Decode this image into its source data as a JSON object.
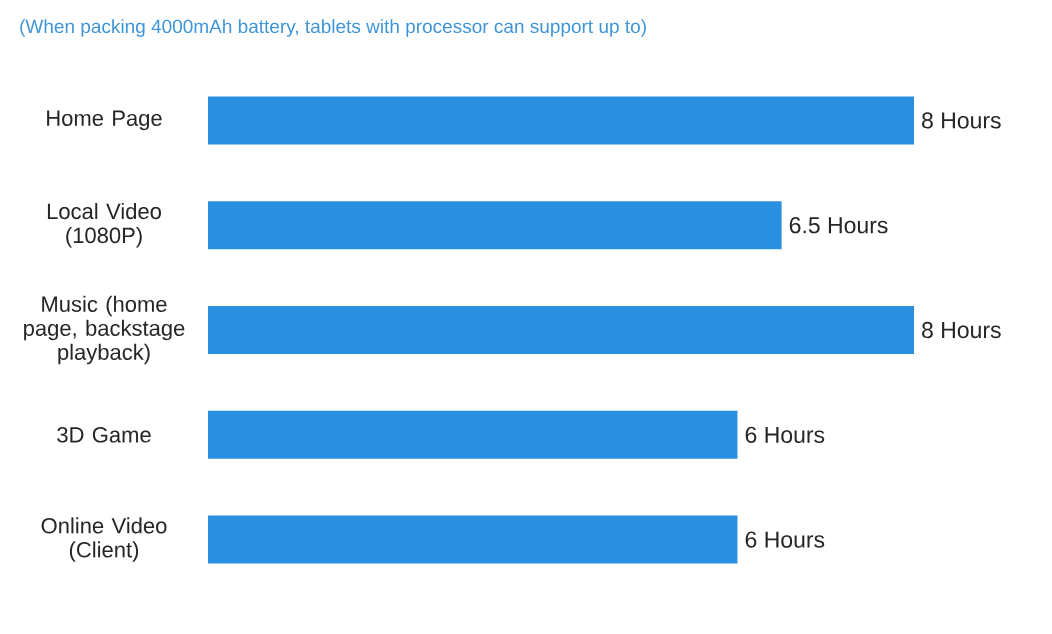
{
  "chart_data": {
    "type": "bar",
    "orientation": "horizontal",
    "title": "(When packing 4000mAh battery, tablets with processor can support up to)",
    "categories": [
      "Home Page",
      "Local Video (1080P)",
      "Music (home page, backstage playback)",
      "3D Game",
      "Online Video (Client)"
    ],
    "values": [
      8,
      6.5,
      8,
      6,
      6
    ],
    "value_labels": [
      "8 Hours",
      "6.5 Hours",
      "8 Hours",
      "6 Hours",
      "6 Hours"
    ],
    "color": "#2b8fe0"
  }
}
